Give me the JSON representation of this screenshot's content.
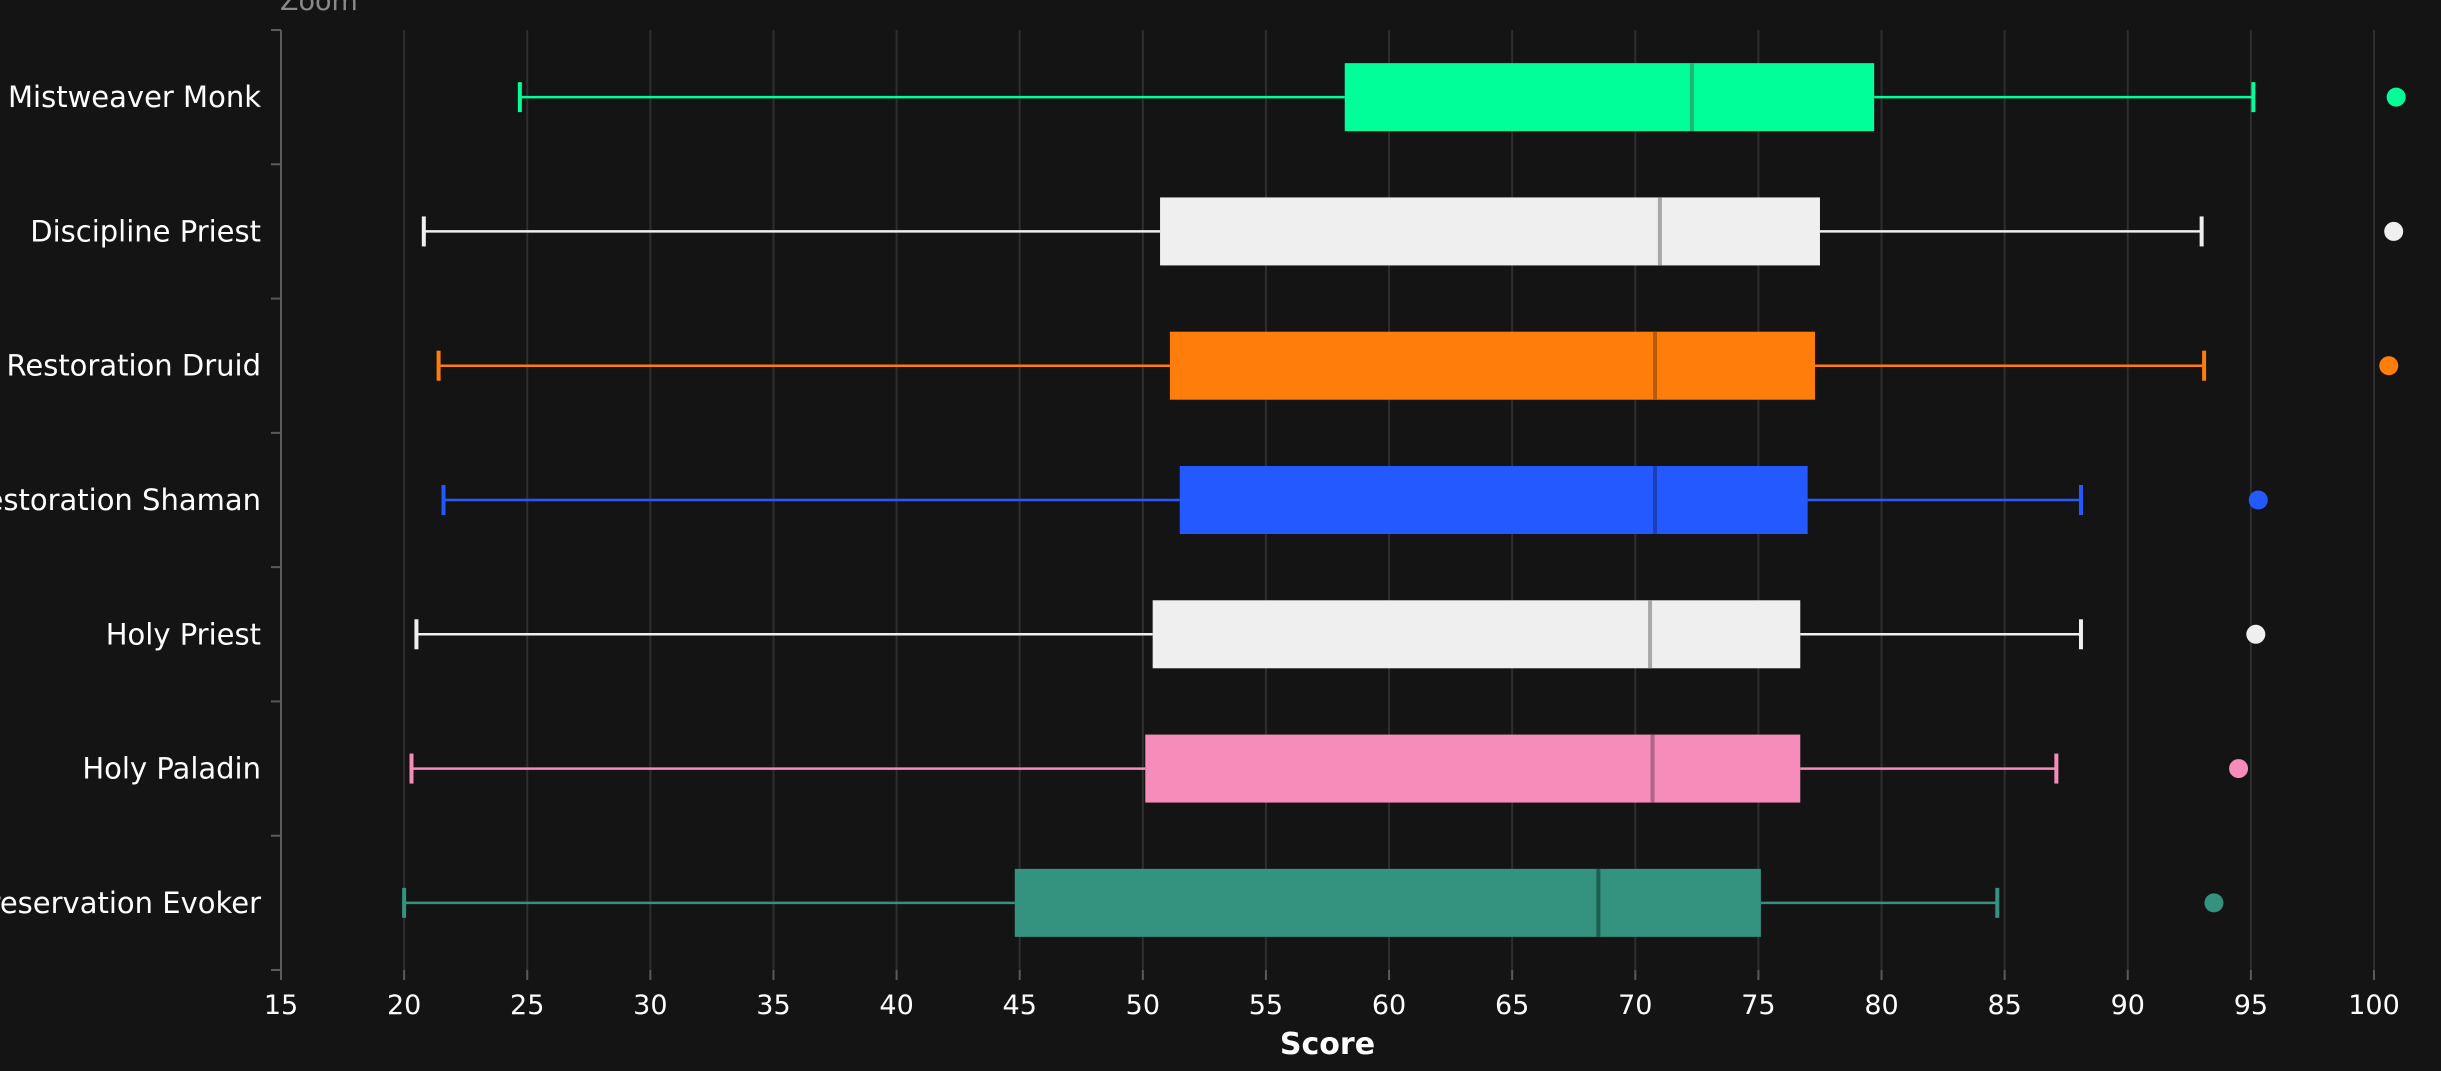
{
  "zoom_label": "Zoom",
  "chart_data": {
    "type": "boxplot",
    "xlabel": "Score",
    "xlim": [
      15,
      100
    ],
    "x_ticks": [
      15,
      20,
      25,
      30,
      35,
      40,
      45,
      50,
      55,
      60,
      65,
      70,
      75,
      80,
      85,
      90,
      95,
      100
    ],
    "grid": true,
    "categories": [
      "Mistweaver Monk",
      "Discipline Priest",
      "Restoration Druid",
      "Restoration Shaman",
      "Holy Priest",
      "Holy Paladin",
      "Preservation Evoker"
    ],
    "series": [
      {
        "min": 24.7,
        "q1": 58.2,
        "median": 72.3,
        "q3": 79.7,
        "max": 95.1,
        "outlier": 100.9,
        "color": "#00ff98",
        "median_color": "#1fb877"
      },
      {
        "min": 20.8,
        "q1": 50.7,
        "median": 71.0,
        "q3": 77.5,
        "max": 93.0,
        "outlier": 100.8,
        "color": "#efefef",
        "median_color": "#a8a8a8"
      },
      {
        "min": 21.4,
        "q1": 51.1,
        "median": 70.8,
        "q3": 77.3,
        "max": 93.1,
        "outlier": 100.6,
        "color": "#ff7d0a",
        "median_color": "#b85a07"
      },
      {
        "min": 21.6,
        "q1": 51.5,
        "median": 70.8,
        "q3": 77.0,
        "max": 88.1,
        "outlier": 95.3,
        "color": "#2459ff",
        "median_color": "#1a3fb8"
      },
      {
        "min": 20.5,
        "q1": 50.4,
        "median": 70.6,
        "q3": 76.7,
        "max": 88.1,
        "outlier": 95.2,
        "color": "#efefef",
        "median_color": "#a8a8a8"
      },
      {
        "min": 20.3,
        "q1": 50.1,
        "median": 70.7,
        "q3": 76.7,
        "max": 87.1,
        "outlier": 94.5,
        "color": "#f58cba",
        "median_color": "#b06585"
      },
      {
        "min": 20.0,
        "q1": 44.8,
        "median": 68.5,
        "q3": 75.1,
        "max": 84.7,
        "outlier": 93.5,
        "color": "#33937f",
        "median_color": "#1f5e51"
      }
    ]
  }
}
